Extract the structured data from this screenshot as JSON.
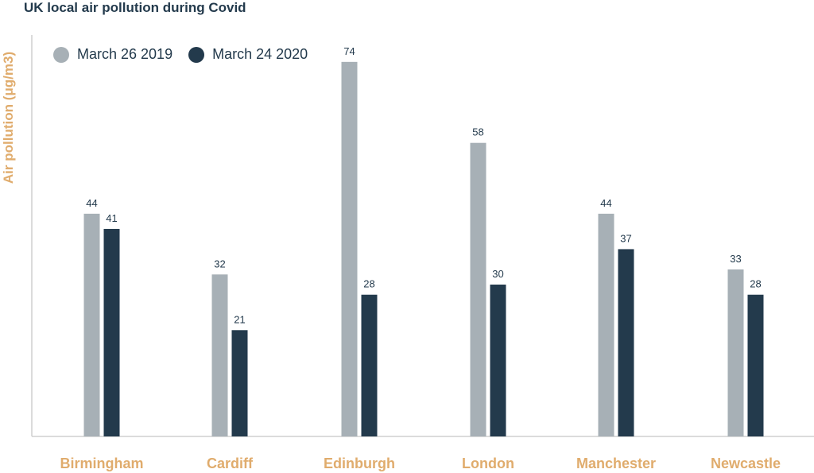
{
  "title": "UK local air pollution during Covid",
  "colors": {
    "series_2019": "#a7b0b6",
    "series_2020": "#233a4c",
    "category_label": "#e0ac6d",
    "axis": "#cfcfcf",
    "text_dark": "#233a4c"
  },
  "chart_data": {
    "type": "bar",
    "title": "UK local air pollution during Covid",
    "xlabel": "",
    "ylabel": "Air pollution (μg/m3)",
    "categories": [
      "Birmingham",
      "Cardiff",
      "Edinburgh",
      "London",
      "Manchester",
      "Newcastle"
    ],
    "series": [
      {
        "name": "March 26 2019",
        "values": [
          44,
          32,
          74,
          58,
          44,
          33
        ]
      },
      {
        "name": "March 24 2020",
        "values": [
          41,
          21,
          28,
          30,
          37,
          28
        ]
      }
    ],
    "ylim": [
      0,
      75
    ],
    "grid": false,
    "legend": "top-left",
    "data_labels": true
  }
}
